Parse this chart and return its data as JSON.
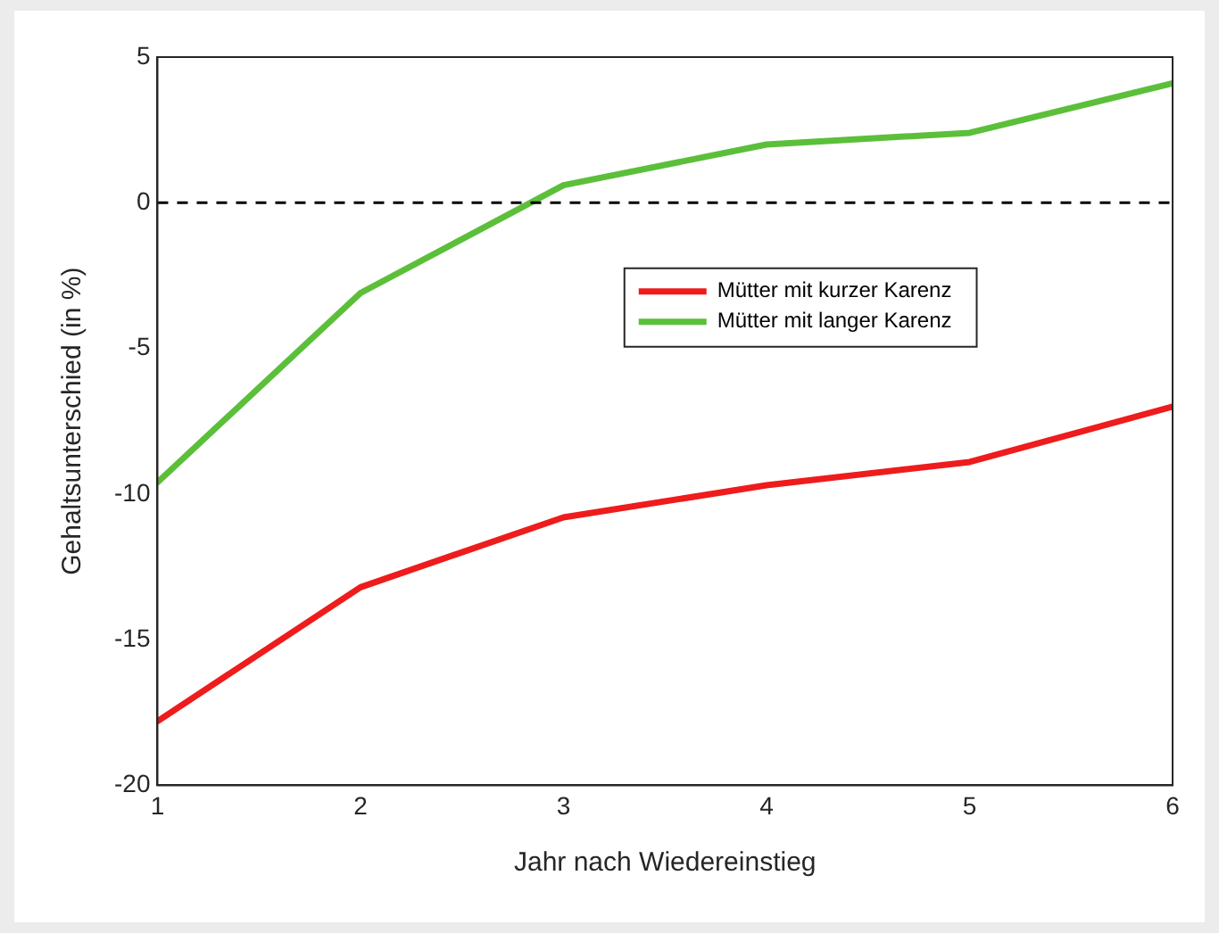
{
  "chart_data": {
    "type": "line",
    "xlabel": "Jahr nach Wiedereinstieg",
    "ylabel": "Gehaltsunterschied (in %)",
    "x": [
      1,
      2,
      3,
      4,
      5,
      6
    ],
    "series": [
      {
        "name": "Mütter mit kurzer Karenz",
        "color": "#ee1c1c",
        "values": [
          -17.8,
          -13.2,
          -10.8,
          -9.7,
          -8.9,
          -7.0
        ]
      },
      {
        "name": "Mütter mit langer Karenz",
        "color": "#5cbf3a",
        "values": [
          -9.6,
          -3.1,
          0.6,
          2.0,
          2.4,
          4.1
        ]
      }
    ],
    "xlim": [
      1,
      6
    ],
    "xticks": [
      1,
      2,
      3,
      4,
      5,
      6
    ],
    "ylim": [
      -20,
      5
    ],
    "yticks": [
      -20,
      -15,
      -10,
      -5,
      0,
      5
    ],
    "ref_lines": [
      {
        "axis": "y",
        "value": 0,
        "color": "#000000",
        "line_style": "dashed"
      }
    ],
    "grid": false,
    "legend": "right",
    "marker": "none",
    "line_style": "solid"
  }
}
